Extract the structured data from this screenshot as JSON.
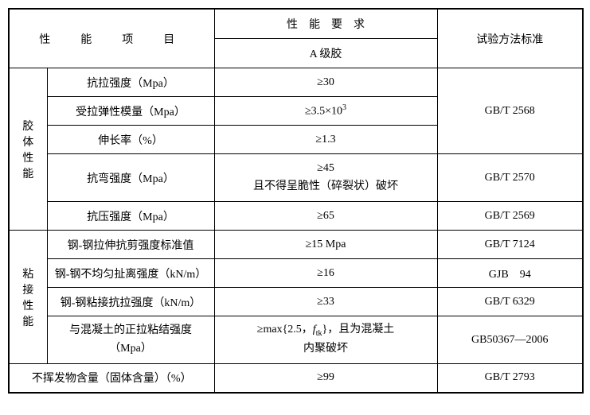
{
  "table": {
    "header": {
      "property_item": "性　能　项　目",
      "requirement": "性　能　要　求",
      "requirement_sub": "A 级胶",
      "test_standard": "试验方法标准"
    },
    "categories": {
      "gel": "胶体性能",
      "bond": "粘接性能"
    },
    "rows": {
      "tensile_strength": {
        "label": "抗拉强度（Mpa）",
        "value": "≥30"
      },
      "elastic_modulus": {
        "label": "受拉弹性模量（Mpa）",
        "value_prefix": "≥3.5×10",
        "value_sup": "3"
      },
      "elongation": {
        "label": "伸长率（%）",
        "value": "≥1.3"
      },
      "flexural_strength": {
        "label": "抗弯强度（Mpa）",
        "value_line1": "≥45",
        "value_line2": "且不得呈脆性（碎裂状）破坏"
      },
      "compressive_strength": {
        "label": "抗压强度（Mpa）",
        "value": "≥65"
      },
      "steel_tensile_shear": {
        "label": "钢-钢拉伸抗剪强度标准值",
        "value": "≥15 Mpa"
      },
      "steel_uneven_peel": {
        "label": "钢-钢不均匀扯离强度（kN/m）",
        "value": "≥16"
      },
      "steel_bond_tensile": {
        "label": "钢-钢粘接抗拉强度（kN/m）",
        "value": "≥33"
      },
      "concrete_bond": {
        "label_line1": "与混凝土的正拉粘结强度",
        "label_line2": "（Mpa）",
        "value_prefix": "≥max{2.5，",
        "value_italic": "f",
        "value_sub": "tk",
        "value_suffix1": "}，且为混凝土",
        "value_suffix2": "内聚破坏"
      },
      "nonvolatile": {
        "label": "不挥发物含量（固体含量）（%）",
        "value": "≥99"
      }
    },
    "standards": {
      "gb_t_2568": "GB/T 2568",
      "gb_t_2570": "GB/T 2570",
      "gb_t_2569": "GB/T 2569",
      "gb_t_7124": "GB/T 7124",
      "gjb_94": "GJB　94",
      "gb_t_6329": "GB/T 6329",
      "gb50367_2006": "GB50367—2006",
      "gb_t_2793": "GB/T 2793"
    },
    "styling": {
      "border_color": "#000000",
      "outer_border_width": 2,
      "inner_border_width": 1,
      "background_color": "#ffffff",
      "font_family": "SimSun",
      "font_size": 14,
      "header_letter_spacing": 12
    }
  }
}
